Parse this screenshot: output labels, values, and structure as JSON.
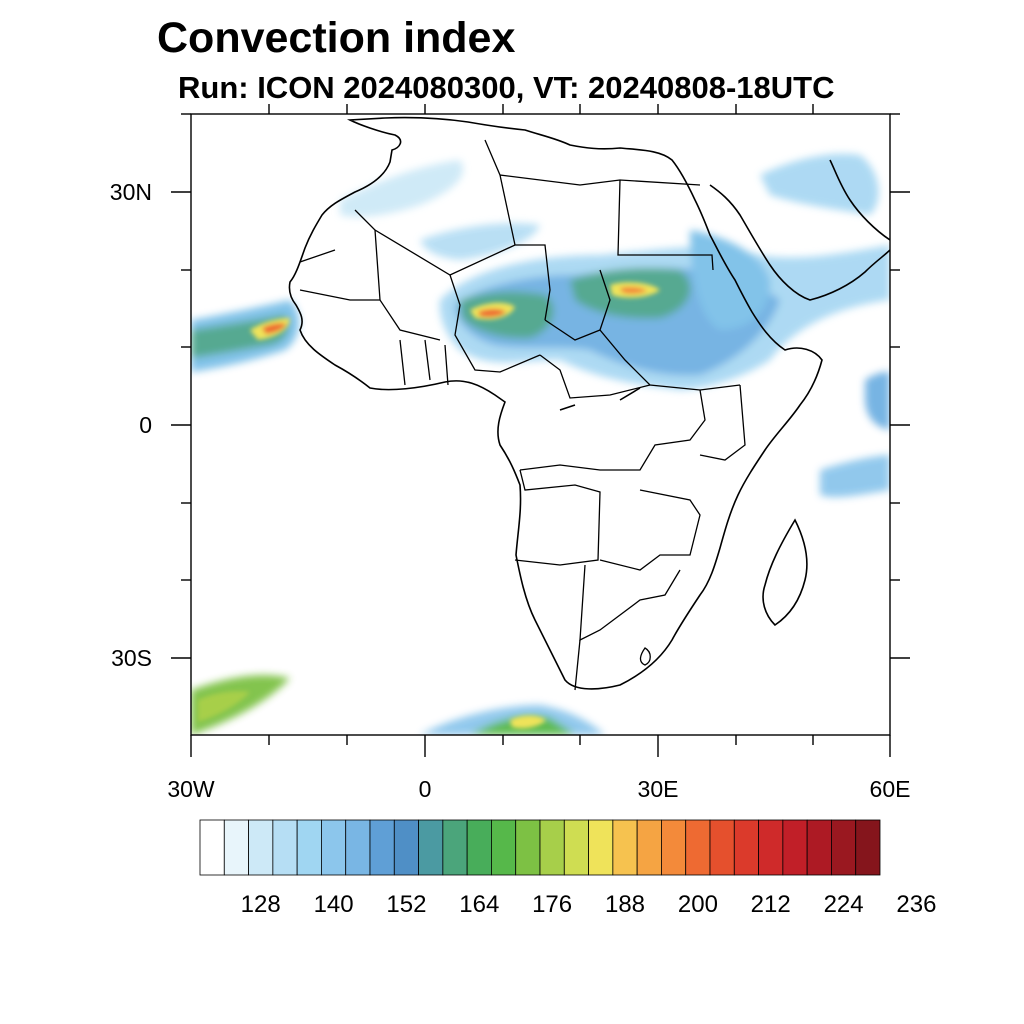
{
  "title": "Convection index",
  "subtitle": "Run: ICON 2024080300,  VT: 20240808-18UTC",
  "map": {
    "lat_ticks": [
      "30N",
      "0",
      "30S"
    ],
    "lon_ticks": [
      "30W",
      "0",
      "30E",
      "60E"
    ],
    "extent": {
      "lon_min": -30,
      "lon_max": 60,
      "lat_min": -40,
      "lat_max": 40
    }
  },
  "colorbar": {
    "labels": [
      "128",
      "140",
      "152",
      "164",
      "176",
      "188",
      "200",
      "212",
      "224",
      "236"
    ],
    "colors": [
      "#ffffff",
      "#e8f5fb",
      "#cde9f7",
      "#b6def4",
      "#a0d6f2",
      "#8cc6ec",
      "#79b6e4",
      "#5f9fd6",
      "#4f8fc6",
      "#4b9aa2",
      "#4ba57b",
      "#48ad5a",
      "#56b84a",
      "#7dc144",
      "#a7cf4a",
      "#cfdd52",
      "#efe35a",
      "#f6c24f",
      "#f5a443",
      "#f38a3a",
      "#ee6a32",
      "#e5502d",
      "#db3a2b",
      "#cf2a2a",
      "#c11f28",
      "#ad1a24",
      "#9a1820",
      "#85151c"
    ]
  }
}
